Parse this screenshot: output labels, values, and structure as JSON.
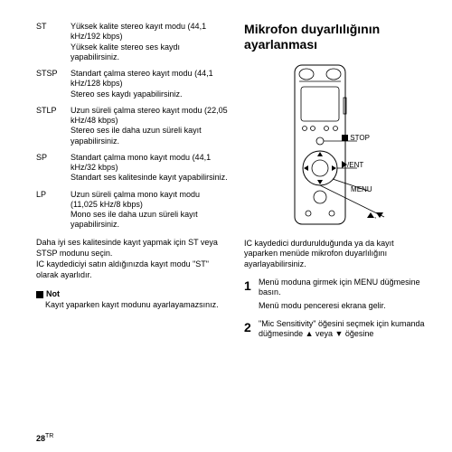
{
  "modes": [
    {
      "code": "ST",
      "desc": "Yüksek kalite stereo kayıt modu (44,1 kHz/192 kbps)\nYüksek kalite stereo ses kaydı yapabilirsiniz."
    },
    {
      "code": "STSP",
      "desc": "Standart çalma stereo kayıt modu (44,1 kHz/128 kbps)\nStereo ses kaydı yapabilirsiniz."
    },
    {
      "code": "STLP",
      "desc": "Uzun süreli çalma stereo kayıt modu (22,05 kHz/48 kbps)\nStereo ses ile daha uzun süreli kayıt yapabilirsiniz."
    },
    {
      "code": "SP",
      "desc": "Standart çalma mono kayıt modu (44,1 kHz/32 kbps)\nStandart ses kalitesinde kayıt yapabilirsiniz."
    },
    {
      "code": "LP",
      "desc": "Uzun süreli çalma mono kayıt modu (11,025 kHz/8 kbps)\nMono ses ile daha uzun süreli kayıt yapabilirsiniz."
    }
  ],
  "left_para": "Daha iyi ses kalitesinde kayıt yapmak için ST veya STSP modunu seçin.\nIC kaydediciyi satın aldığınızda kayıt modu \"ST\" olarak ayarlıdır.",
  "note_label": "Not",
  "note_body": "Kayıt yaparken kayıt modunu ayarlayamazsınız.",
  "right_title": "Mikrofon duyarlılığının ayarlanması",
  "labels": {
    "stop": "STOP",
    "ent": "/ENT",
    "menu": "MENU",
    "nav": ","
  },
  "right_para": "IC kaydedici durdurulduğunda ya da kayıt yaparken menüde mikrofon duyarlılığını ayarlayabilirsiniz.",
  "steps": [
    {
      "n": "1",
      "body": "Menü moduna girmek için MENU düğmesine basın.",
      "sub": "Menü modu penceresi ekrana gelir."
    },
    {
      "n": "2",
      "body": "\"Mic Sensitivity\" öğesini seçmek için kumanda düğmesinde ▲ veya ▼ öğesine"
    }
  ],
  "page": "28",
  "page_sup": "TR"
}
